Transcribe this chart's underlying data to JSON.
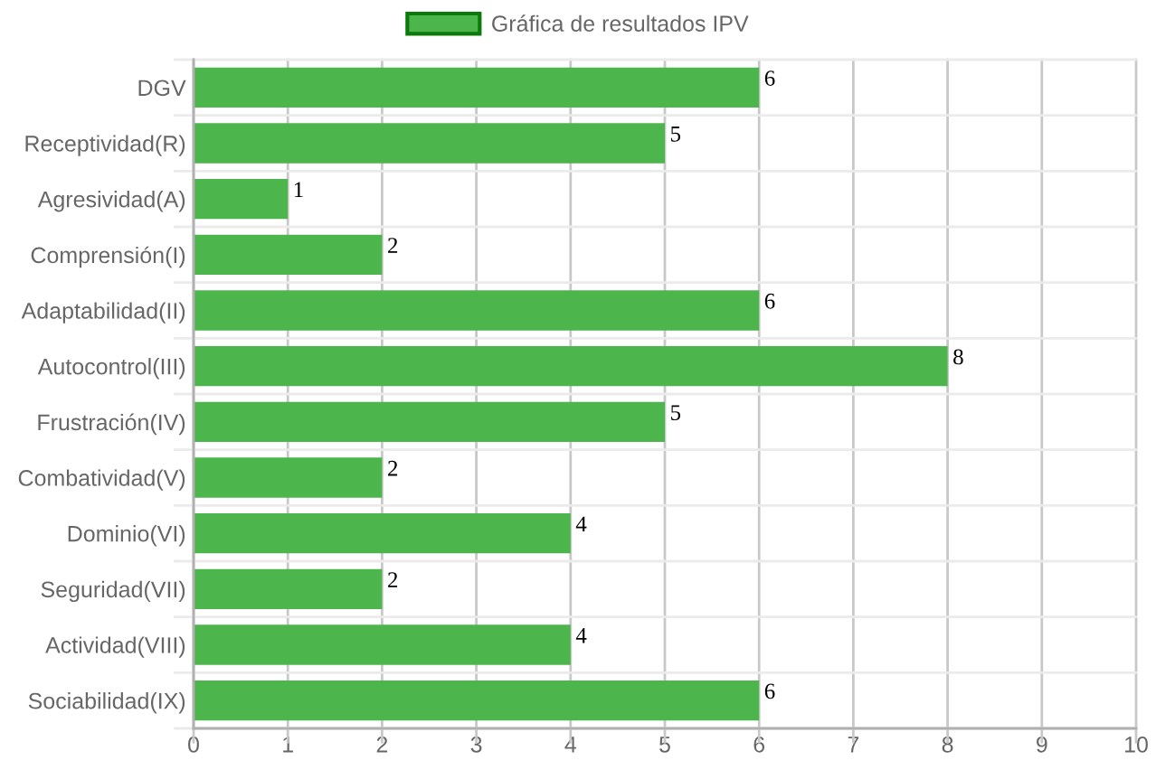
{
  "chart_data": {
    "type": "bar",
    "orientation": "horizontal",
    "categories": [
      "DGV",
      "Receptividad(R)",
      "Agresividad(A)",
      "Comprensión(I)",
      "Adaptabilidad(II)",
      "Autocontrol(III)",
      "Frustración(IV)",
      "Combatividad(V)",
      "Dominio(VI)",
      "Seguridad(VII)",
      "Actividad(VIII)",
      "Sociabilidad(IX)"
    ],
    "series": [
      {
        "name": "Gráfica de resultados IPV",
        "color": "#4cb54c",
        "values": [
          6,
          5,
          1,
          2,
          6,
          8,
          5,
          2,
          4,
          2,
          4,
          6
        ]
      }
    ],
    "xlim": [
      0,
      10
    ],
    "xticks": [
      0,
      1,
      2,
      3,
      4,
      5,
      6,
      7,
      8,
      9,
      10
    ],
    "grid": true,
    "legend": "top",
    "data_labels": true
  }
}
